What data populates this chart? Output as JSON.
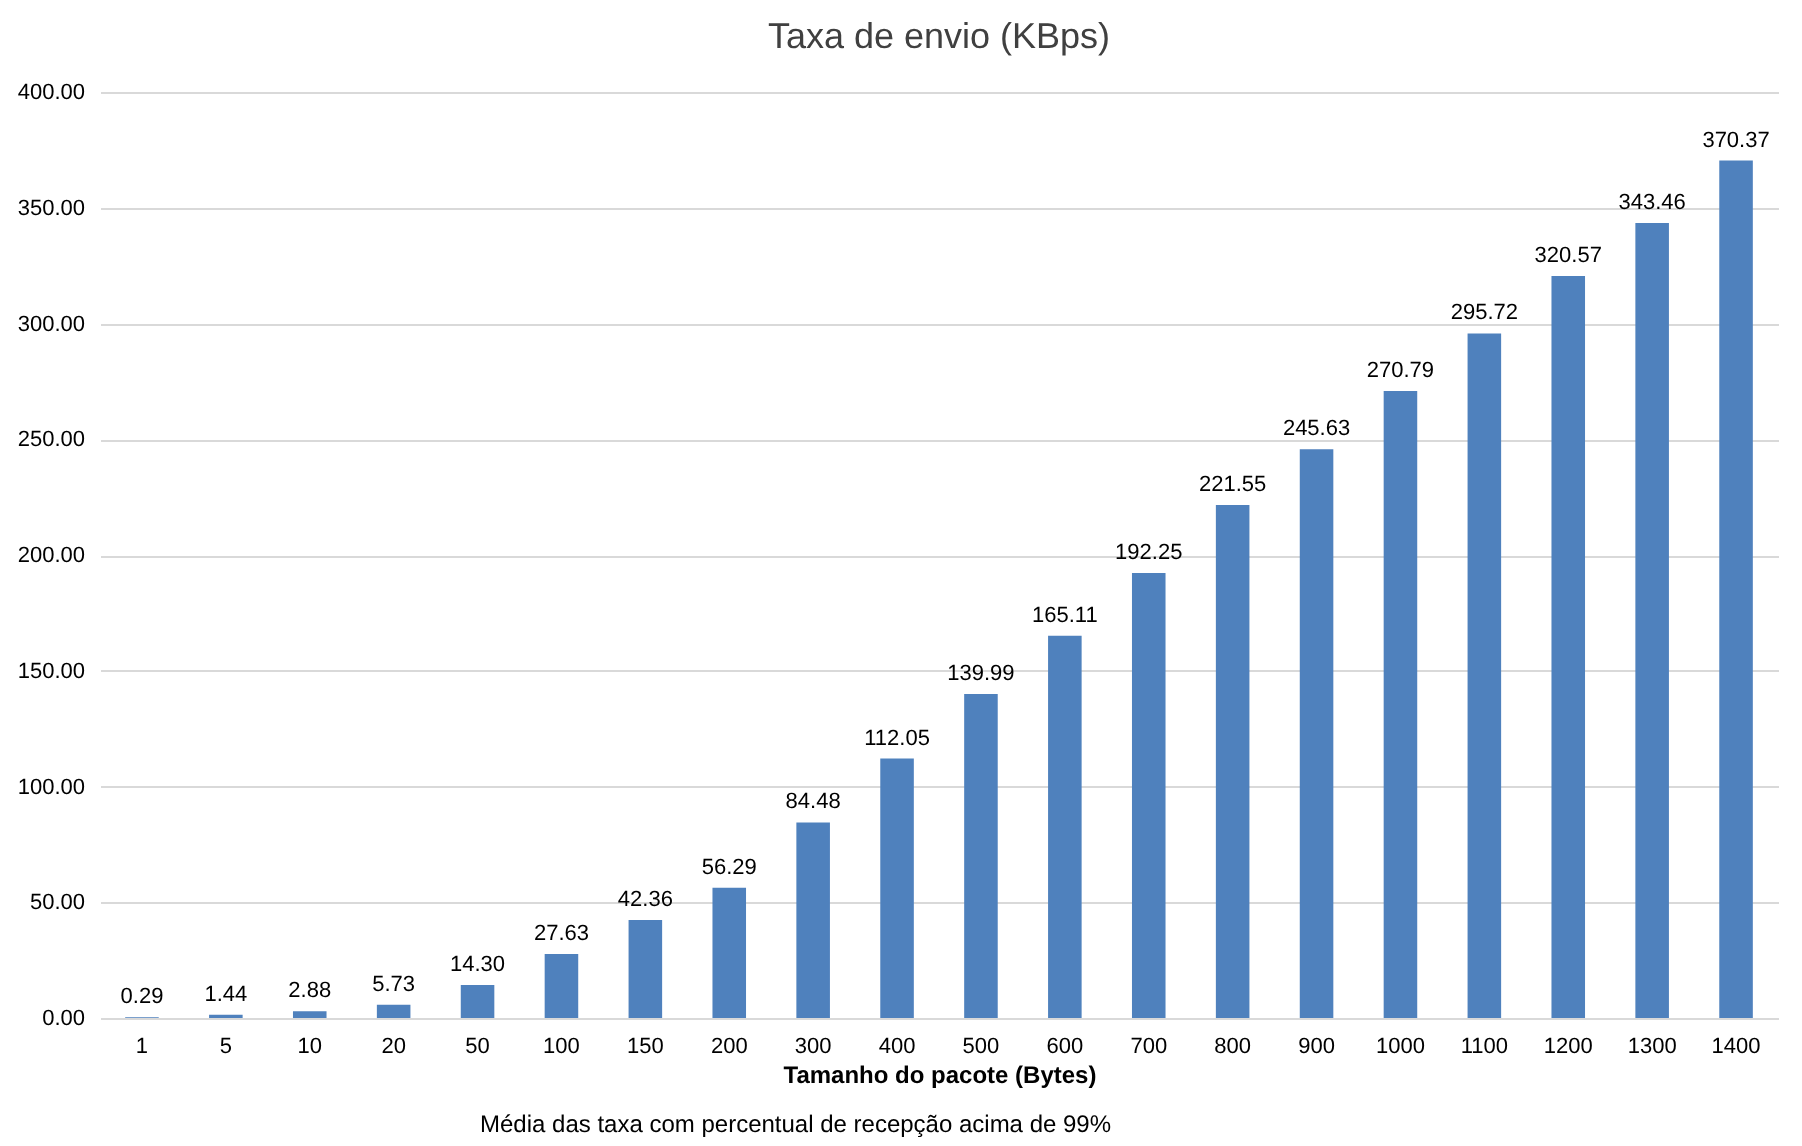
{
  "chart_data": {
    "type": "bar",
    "title": "Taxa de envio (KBps)",
    "xlabel": "Tamanho do pacote (Bytes)",
    "annotations": [
      "Média das taxa com percentual de recepção acima de 99%"
    ],
    "categories": [
      "1",
      "5",
      "10",
      "20",
      "50",
      "100",
      "150",
      "200",
      "300",
      "400",
      "500",
      "600",
      "700",
      "800",
      "900",
      "1000",
      "1100",
      "1200",
      "1300",
      "1400"
    ],
    "series": [
      {
        "color": "#4f81bd",
        "values": [
          0.29,
          1.44,
          2.88,
          5.73,
          14.3,
          27.63,
          42.36,
          56.29,
          84.48,
          112.05,
          139.99,
          165.11,
          192.25,
          221.55,
          245.63,
          270.79,
          295.72,
          320.57,
          343.46,
          370.37
        ],
        "value_labels": [
          "0.29",
          "1.44",
          "2.88",
          "5.73",
          "14.30",
          "27.63",
          "42.36",
          "56.29",
          "84.48",
          "112.05",
          "139.99",
          "165.11",
          "192.25",
          "221.55",
          "245.63",
          "270.79",
          "295.72",
          "320.57",
          "343.46",
          "370.37"
        ]
      }
    ],
    "ylim": [
      0,
      400
    ],
    "yticks": [
      {
        "value": 0,
        "label": "0.00"
      },
      {
        "value": 50,
        "label": "50.00"
      },
      {
        "value": 100,
        "label": "100.00"
      },
      {
        "value": 150,
        "label": "150.00"
      },
      {
        "value": 200,
        "label": "200.00"
      },
      {
        "value": 250,
        "label": "250.00"
      },
      {
        "value": 300,
        "label": "300.00"
      },
      {
        "value": 350,
        "label": "350.00"
      },
      {
        "value": 400,
        "label": "400.00"
      }
    ],
    "grid": "y",
    "legend": false
  }
}
